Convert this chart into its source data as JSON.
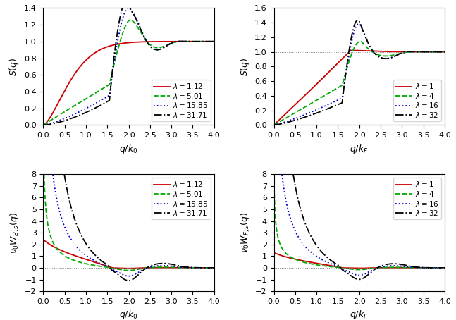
{
  "bosons_sq_lambdas": [
    1.12,
    5.01,
    15.85,
    31.71
  ],
  "fermions_sq_lambdas": [
    1,
    4,
    16,
    32
  ],
  "colors": [
    "#cc0000",
    "#00aa00",
    "#0000cc",
    "#000000"
  ],
  "linestyles_bosons": [
    "-",
    "--",
    ":",
    "-."
  ],
  "linestyles_fermions": [
    "-",
    "--",
    ":",
    "-."
  ],
  "sq_ylim_bosons": [
    0,
    1.4
  ],
  "sq_ylim_fermions": [
    0,
    1.6
  ],
  "wq_ylim": [
    -2,
    8
  ],
  "xlim": [
    0,
    4
  ],
  "sq_yticks_bosons": [
    0,
    0.2,
    0.4,
    0.6,
    0.8,
    1.0,
    1.2,
    1.4
  ],
  "sq_yticks_fermions": [
    0,
    0.2,
    0.4,
    0.6,
    0.8,
    1.0,
    1.2,
    1.4,
    1.6
  ],
  "wq_yticks": [
    -2,
    -1,
    0,
    1,
    2,
    3,
    4,
    5,
    6,
    7,
    8
  ],
  "xticks": [
    0,
    0.5,
    1,
    1.5,
    2,
    2.5,
    3,
    3.5,
    4
  ]
}
